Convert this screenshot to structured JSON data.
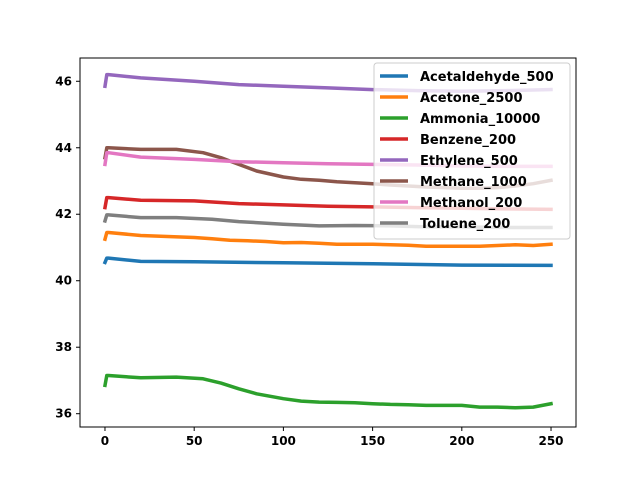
{
  "chart_data": {
    "type": "line",
    "title": "",
    "xlabel": "",
    "ylabel": "",
    "xlim": [
      -14,
      264
    ],
    "ylim": [
      35.6,
      46.7
    ],
    "xticks": [
      0,
      50,
      100,
      150,
      200,
      250
    ],
    "yticks": [
      36,
      38,
      40,
      42,
      44,
      46
    ],
    "grid": false,
    "legend_position": "top-right",
    "series": [
      {
        "name": "Acetaldehyde_500",
        "color": "#1f77b4",
        "x": [
          0,
          1,
          2,
          20,
          50,
          100,
          150,
          200,
          250
        ],
        "y": [
          40.55,
          40.68,
          40.68,
          40.58,
          40.57,
          40.54,
          40.51,
          40.47,
          40.46
        ]
      },
      {
        "name": "Acetone_2500",
        "color": "#ff7f0e",
        "x": [
          0,
          1,
          2,
          20,
          50,
          60,
          70,
          80,
          90,
          100,
          110,
          120,
          130,
          140,
          150,
          160,
          170,
          180,
          190,
          200,
          210,
          220,
          230,
          240,
          250
        ],
        "y": [
          41.25,
          41.45,
          41.45,
          41.36,
          41.3,
          41.26,
          41.22,
          41.2,
          41.18,
          41.14,
          41.15,
          41.13,
          41.1,
          41.1,
          41.1,
          41.08,
          41.07,
          41.04,
          41.04,
          41.04,
          41.04,
          41.06,
          41.08,
          41.06,
          41.1
        ]
      },
      {
        "name": "Ammonia_10000",
        "color": "#2ca02c",
        "x": [
          0,
          1,
          2,
          20,
          40,
          55,
          65,
          75,
          85,
          100,
          110,
          120,
          130,
          140,
          150,
          160,
          170,
          180,
          190,
          200,
          210,
          220,
          230,
          240,
          250
        ],
        "y": [
          36.85,
          37.15,
          37.15,
          37.08,
          37.1,
          37.05,
          36.92,
          36.75,
          36.6,
          36.45,
          36.38,
          36.35,
          36.34,
          36.33,
          36.3,
          36.28,
          36.27,
          36.25,
          36.25,
          36.25,
          36.2,
          36.2,
          36.18,
          36.2,
          36.3
        ]
      },
      {
        "name": "Benzene_200",
        "color": "#d62728",
        "x": [
          0,
          1,
          2,
          20,
          50,
          75,
          100,
          125,
          150,
          175,
          200,
          225,
          250
        ],
        "y": [
          42.2,
          42.5,
          42.5,
          42.42,
          42.4,
          42.32,
          42.28,
          42.24,
          42.22,
          42.2,
          42.18,
          42.16,
          42.15
        ]
      },
      {
        "name": "Ethylene_500",
        "color": "#9467bd",
        "x": [
          0,
          1,
          2,
          20,
          50,
          75,
          100,
          125,
          150,
          175,
          200,
          225,
          250
        ],
        "y": [
          45.85,
          46.2,
          46.2,
          46.1,
          46.0,
          45.9,
          45.85,
          45.8,
          45.75,
          45.72,
          45.7,
          45.72,
          45.75
        ]
      },
      {
        "name": "Methane_1000",
        "color": "#8c564b",
        "x": [
          0,
          1,
          2,
          20,
          40,
          55,
          65,
          75,
          85,
          100,
          110,
          120,
          130,
          140,
          150,
          160,
          170,
          180,
          190,
          200,
          210,
          220,
          230,
          240,
          250
        ],
        "y": [
          43.7,
          44.0,
          44.0,
          43.95,
          43.95,
          43.85,
          43.7,
          43.5,
          43.3,
          43.12,
          43.05,
          43.02,
          42.98,
          42.95,
          42.92,
          42.88,
          42.85,
          42.82,
          42.8,
          42.78,
          42.78,
          42.8,
          42.85,
          42.92,
          43.02
        ]
      },
      {
        "name": "Methanol_200",
        "color": "#e377c2",
        "x": [
          0,
          1,
          2,
          20,
          50,
          75,
          100,
          125,
          150,
          175,
          200,
          225,
          250
        ],
        "y": [
          43.5,
          43.85,
          43.85,
          43.72,
          43.65,
          43.58,
          43.55,
          43.52,
          43.5,
          43.48,
          43.45,
          43.44,
          43.44
        ]
      },
      {
        "name": "Toluene_200",
        "color": "#7f7f7f",
        "x": [
          0,
          1,
          2,
          20,
          40,
          60,
          75,
          100,
          120,
          140,
          160,
          180,
          200,
          225,
          250
        ],
        "y": [
          41.8,
          41.98,
          41.98,
          41.9,
          41.9,
          41.85,
          41.78,
          41.7,
          41.65,
          41.66,
          41.65,
          41.62,
          41.62,
          41.6,
          41.6
        ]
      }
    ]
  }
}
